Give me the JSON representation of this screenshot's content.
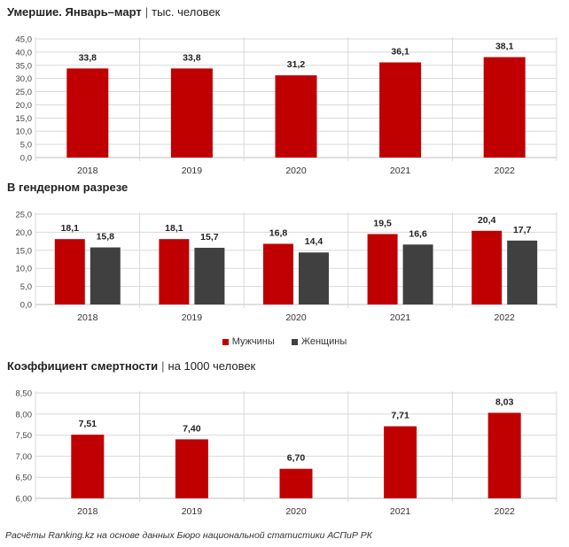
{
  "titles": {
    "chart1_main": "Умершие. Январь–март",
    "chart1_unit": "тыс. человек",
    "chart2_main": "В гендерном разрезе",
    "chart3_main": "Коэффициент смертности",
    "chart3_unit": "на 1000 человек",
    "separator": "|"
  },
  "legend": {
    "men": "Мужчины",
    "women": "Женщины"
  },
  "source": "Расчёты Ranking.kz на основе данных Бюро национальной статистики АСПиР РК",
  "colors": {
    "red": "#c00000",
    "dark": "#404040",
    "grid": "#d9d9d9",
    "axis": "#bfbfbf"
  },
  "chart_data": [
    {
      "type": "bar",
      "title": "Умершие. Январь–март",
      "unit": "тыс. человек",
      "categories": [
        "2018",
        "2019",
        "2020",
        "2021",
        "2022"
      ],
      "series": [
        {
          "values": [
            33.8,
            33.8,
            31.2,
            36.1,
            38.1
          ],
          "labels": [
            "33,8",
            "33,8",
            "31,2",
            "36,1",
            "38,1"
          ],
          "color": "#c00000"
        }
      ],
      "ylim": [
        0,
        45
      ],
      "yticks": [
        "0,0",
        "5,0",
        "10,0",
        "15,0",
        "20,0",
        "25,0",
        "30,0",
        "35,0",
        "40,0",
        "45,0"
      ],
      "grid": true
    },
    {
      "type": "bar",
      "title": "В гендерном разрезе",
      "categories": [
        "2018",
        "2019",
        "2020",
        "2021",
        "2022"
      ],
      "series": [
        {
          "name": "Мужчины",
          "values": [
            18.1,
            18.1,
            16.8,
            19.5,
            20.4
          ],
          "labels": [
            "18,1",
            "18,1",
            "16,8",
            "19,5",
            "20,4"
          ],
          "color": "#c00000"
        },
        {
          "name": "Женщины",
          "values": [
            15.8,
            15.7,
            14.4,
            16.6,
            17.7
          ],
          "labels": [
            "15,8",
            "15,7",
            "14,4",
            "16,6",
            "17,7"
          ],
          "color": "#404040"
        }
      ],
      "ylim": [
        0,
        25
      ],
      "yticks": [
        "0,0",
        "5,0",
        "10,0",
        "15,0",
        "20,0",
        "25,0"
      ],
      "legend": "bottom",
      "grid": true
    },
    {
      "type": "bar",
      "title": "Коэффициент смертности",
      "unit": "на 1000 человек",
      "categories": [
        "2018",
        "2019",
        "2020",
        "2021",
        "2022"
      ],
      "series": [
        {
          "values": [
            7.51,
            7.4,
            6.7,
            7.71,
            8.03
          ],
          "labels": [
            "7,51",
            "7,40",
            "6,70",
            "7,71",
            "8,03"
          ],
          "color": "#c00000"
        }
      ],
      "ylim": [
        6.0,
        8.5
      ],
      "yticks": [
        "6,00",
        "6,50",
        "7,00",
        "7,50",
        "8,00",
        "8,50"
      ],
      "grid": true
    }
  ]
}
